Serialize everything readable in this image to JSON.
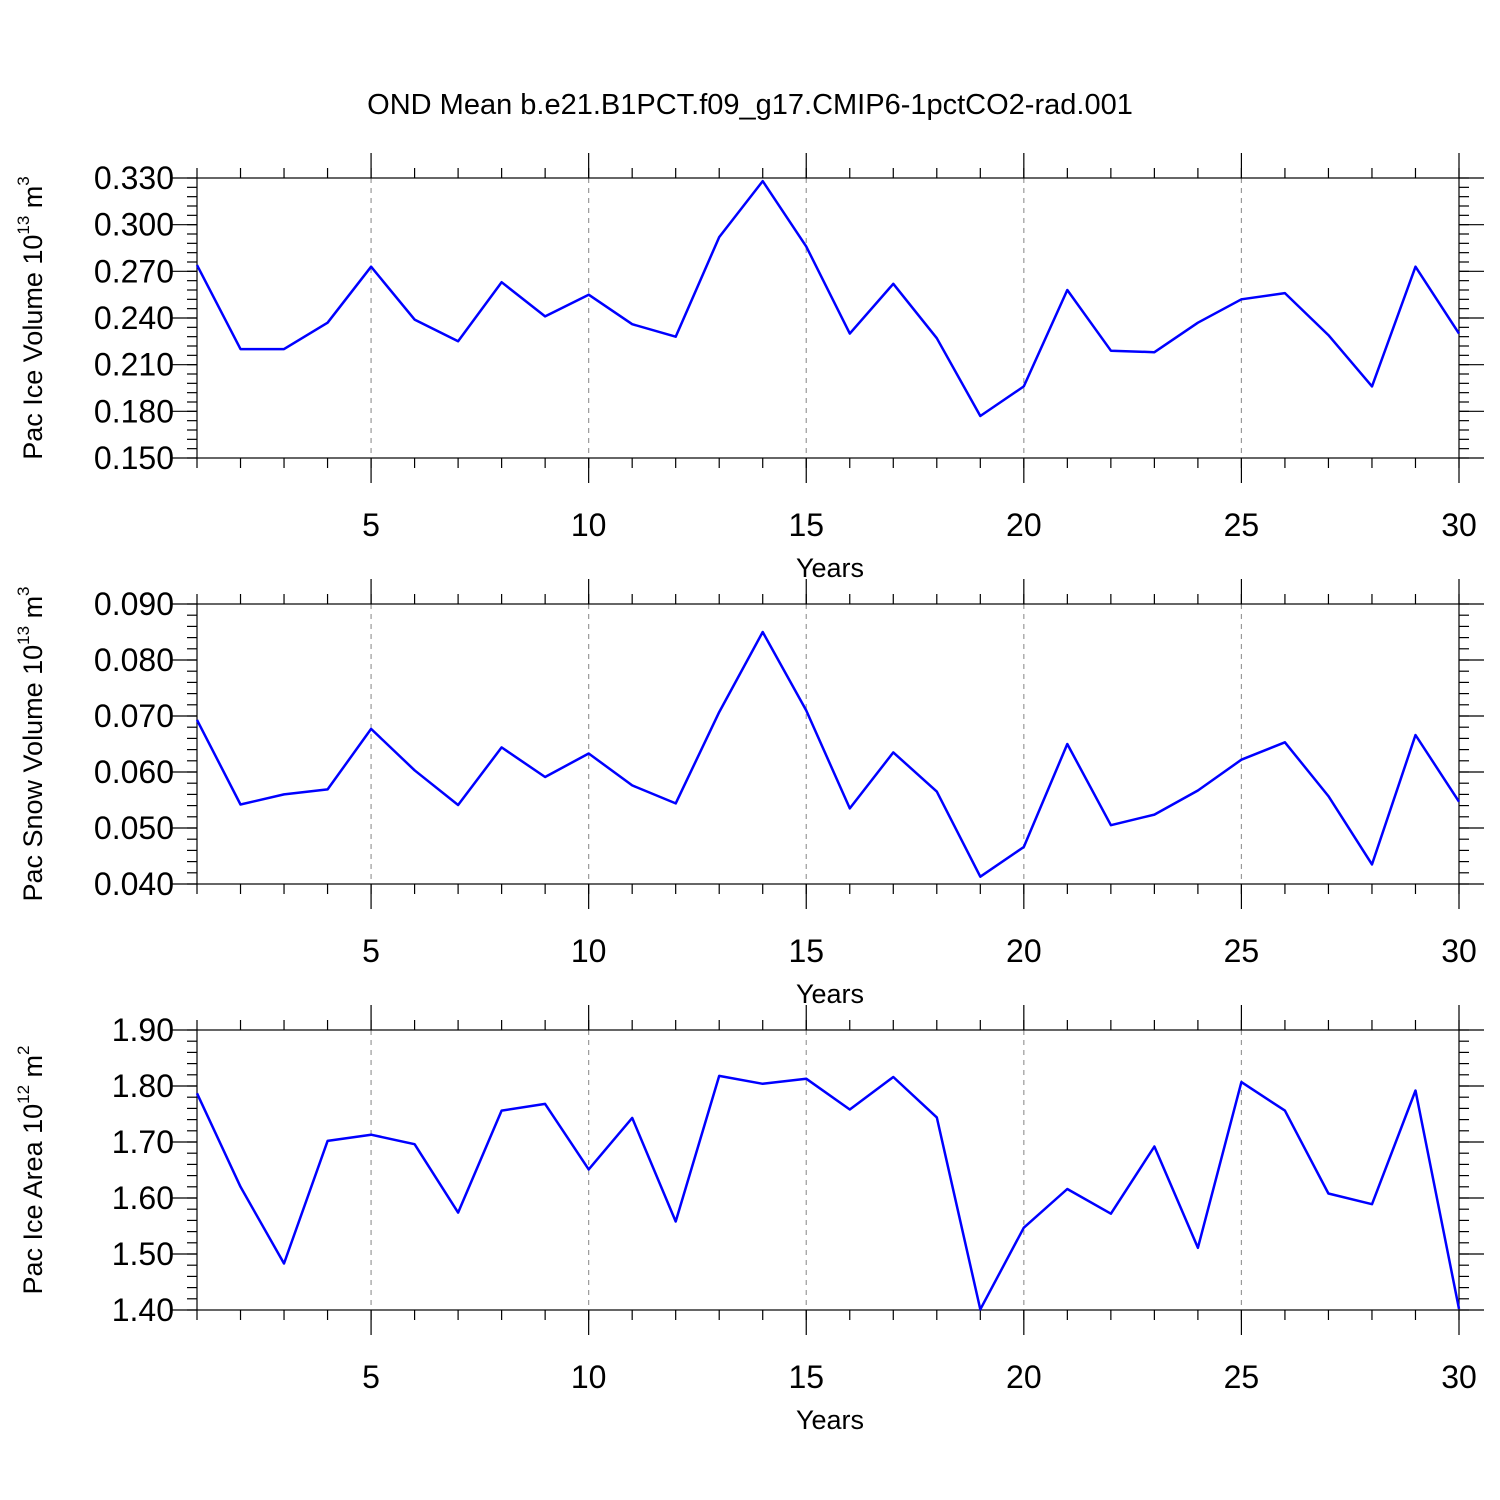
{
  "chart_title": "OND Mean b.e21.B1PCT.f09_g17.CMIP6-1pctCO2-rad.001",
  "chart_data": [
    {
      "type": "line",
      "ylabel_parts": [
        "Pac Ice Volume 10",
        "13",
        " m",
        "3"
      ],
      "xlabel": "Years",
      "xlim": [
        1,
        30
      ],
      "ylim": [
        0.15,
        0.33
      ],
      "y_ticks": [
        "0.150",
        "0.180",
        "0.210",
        "0.240",
        "0.270",
        "0.300",
        "0.330"
      ],
      "x_ticks": [
        "5",
        "10",
        "15",
        "20",
        "25",
        "30"
      ],
      "grid": "vertical dashed at labeled x ticks",
      "series": [
        {
          "color": "#0000ff",
          "x": [
            1,
            2,
            3,
            4,
            5,
            6,
            7,
            8,
            9,
            10,
            11,
            12,
            13,
            14,
            15,
            16,
            17,
            18,
            19,
            20,
            21,
            22,
            23,
            24,
            25,
            26,
            27,
            28,
            29,
            30
          ],
          "y": [
            0.274,
            0.22,
            0.22,
            0.237,
            0.273,
            0.239,
            0.225,
            0.263,
            0.241,
            0.255,
            0.236,
            0.228,
            0.292,
            0.328,
            0.286,
            0.23,
            0.262,
            0.227,
            0.177,
            0.196,
            0.258,
            0.219,
            0.218,
            0.237,
            0.252,
            0.256,
            0.229,
            0.196,
            0.273,
            0.23
          ]
        }
      ]
    },
    {
      "type": "line",
      "ylabel_parts": [
        "Pac Snow Volume 10",
        "13",
        " m",
        "3"
      ],
      "xlabel": "Years",
      "xlim": [
        1,
        30
      ],
      "ylim": [
        0.04,
        0.09
      ],
      "y_ticks": [
        "0.040",
        "0.050",
        "0.060",
        "0.070",
        "0.080",
        "0.090"
      ],
      "x_ticks": [
        "5",
        "10",
        "15",
        "20",
        "25",
        "30"
      ],
      "grid": "vertical dashed at labeled x ticks",
      "series": [
        {
          "color": "#0000ff",
          "x": [
            1,
            2,
            3,
            4,
            5,
            6,
            7,
            8,
            9,
            10,
            11,
            12,
            13,
            14,
            15,
            16,
            17,
            18,
            19,
            20,
            21,
            22,
            23,
            24,
            25,
            26,
            27,
            28,
            29,
            30
          ],
          "y": [
            0.0693,
            0.0542,
            0.056,
            0.0569,
            0.0677,
            0.0603,
            0.0541,
            0.0644,
            0.0591,
            0.0633,
            0.0576,
            0.0544,
            0.0707,
            0.085,
            0.071,
            0.0535,
            0.0635,
            0.0565,
            0.0413,
            0.0466,
            0.065,
            0.0505,
            0.0524,
            0.0567,
            0.0622,
            0.0653,
            0.0557,
            0.0435,
            0.0666,
            0.0547
          ]
        }
      ]
    },
    {
      "type": "line",
      "ylabel_parts": [
        "Pac Ice Area 10",
        "12",
        " m",
        "2"
      ],
      "xlabel": "Years",
      "xlim": [
        1,
        30
      ],
      "ylim": [
        1.4,
        1.9
      ],
      "y_ticks": [
        "1.40",
        "1.50",
        "1.60",
        "1.70",
        "1.80",
        "1.90"
      ],
      "x_ticks": [
        "5",
        "10",
        "15",
        "20",
        "25",
        "30"
      ],
      "grid": "vertical dashed at labeled x ticks",
      "series": [
        {
          "color": "#0000ff",
          "x": [
            1,
            2,
            3,
            4,
            5,
            6,
            7,
            8,
            9,
            10,
            11,
            12,
            13,
            14,
            15,
            16,
            17,
            18,
            19,
            20,
            21,
            22,
            23,
            24,
            25,
            26,
            27,
            28,
            29,
            30
          ],
          "y": [
            1.787,
            1.62,
            1.483,
            1.702,
            1.713,
            1.696,
            1.574,
            1.756,
            1.768,
            1.651,
            1.743,
            1.558,
            1.818,
            1.804,
            1.813,
            1.758,
            1.816,
            1.744,
            1.401,
            1.547,
            1.616,
            1.572,
            1.692,
            1.511,
            1.807,
            1.756,
            1.608,
            1.589,
            1.792,
            1.402
          ]
        }
      ]
    }
  ]
}
